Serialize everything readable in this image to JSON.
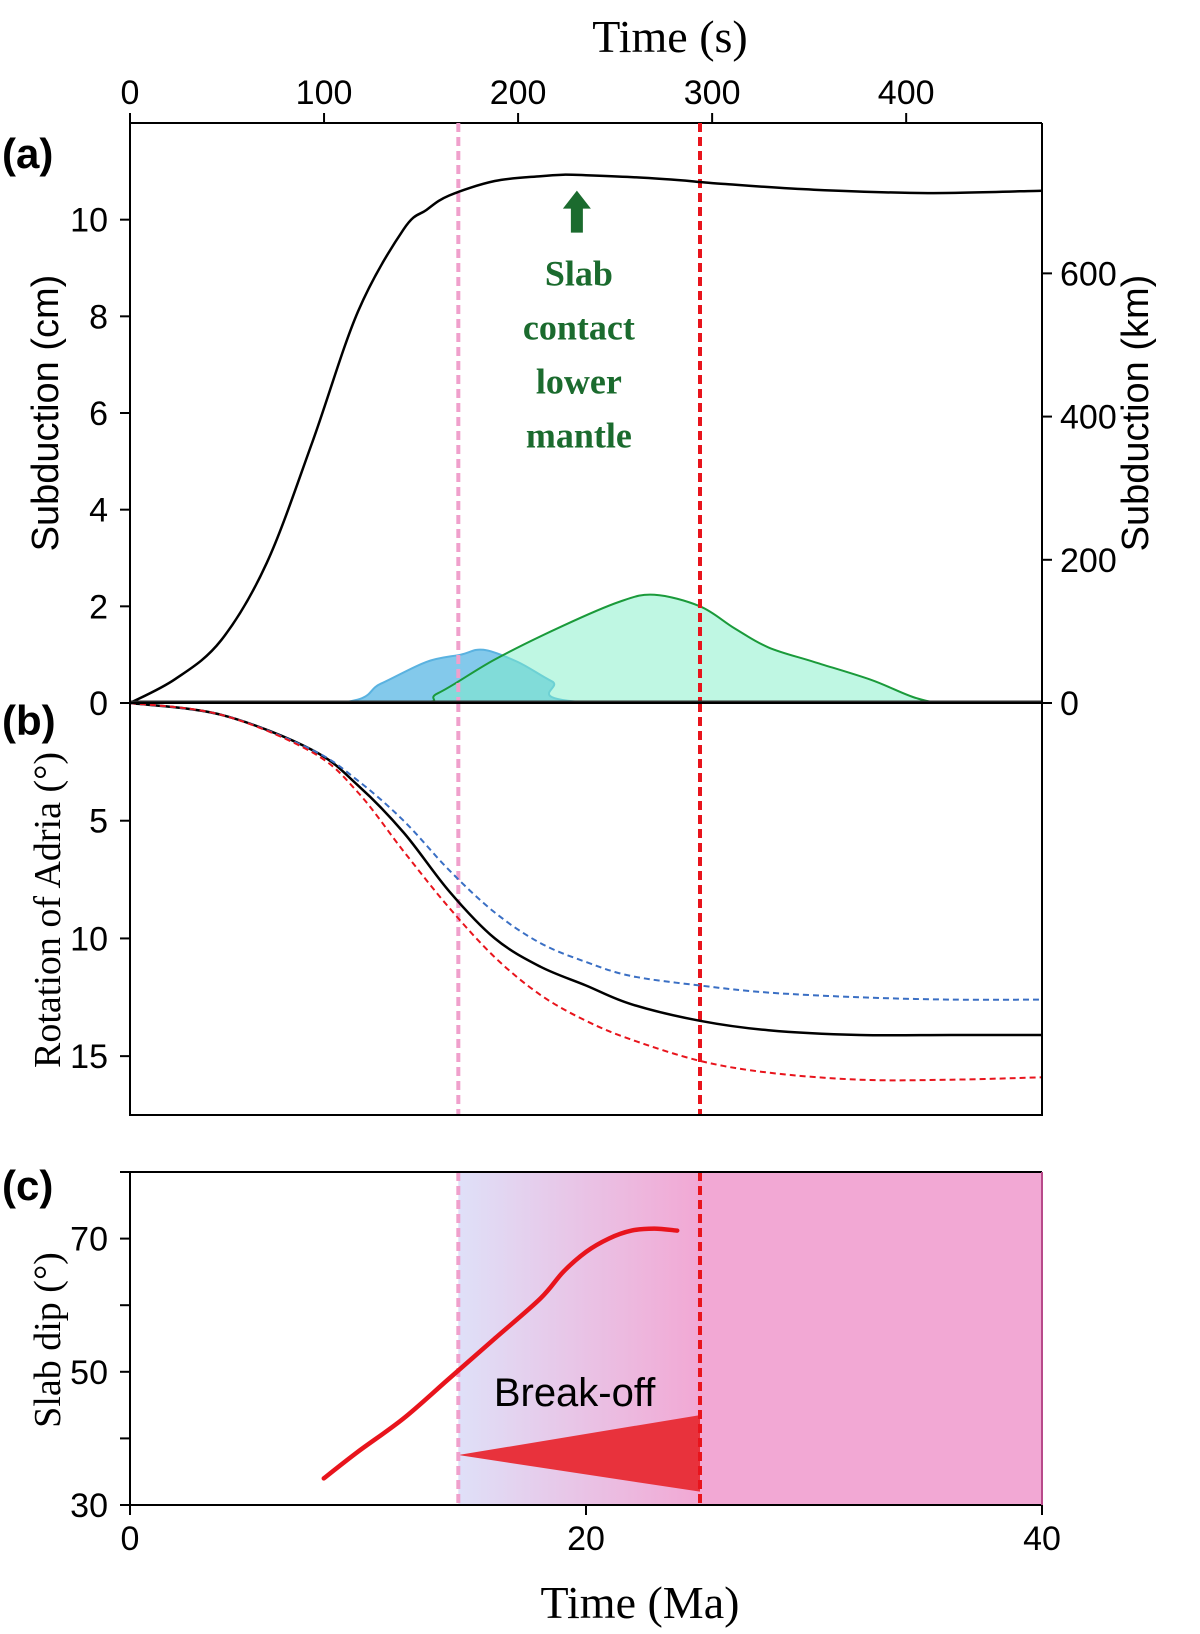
{
  "chart_data": [
    {
      "panel": "a",
      "panel_label": "(a)",
      "type": "line",
      "title": "Time (s)",
      "top_axis": {
        "label": "Time (s)",
        "range": [
          0,
          470
        ],
        "ticks": [
          0,
          100,
          200,
          300,
          400
        ]
      },
      "xlabel": "",
      "x_range_Ma": [
        0,
        40
      ],
      "ylabel": "Subduction (cm)",
      "ylim": [
        0,
        12
      ],
      "yticks": [
        0,
        2,
        4,
        6,
        8,
        10
      ],
      "ylabel_right": "Subduction (km)",
      "right_axis": {
        "range": [
          0,
          810
        ],
        "ticks": [
          0,
          200,
          400,
          600
        ]
      },
      "series": [
        {
          "name": "subduction",
          "style": "solid",
          "color": "#000000",
          "x": [
            0,
            2,
            4,
            6,
            8,
            10,
            12,
            13,
            14,
            16,
            18,
            19,
            20,
            22,
            24,
            25,
            26,
            30,
            35,
            40
          ],
          "y": [
            0,
            0.5,
            1.3,
            2.9,
            5.4,
            8.1,
            9.8,
            10.2,
            10.5,
            10.8,
            10.9,
            10.93,
            10.92,
            10.88,
            10.82,
            10.78,
            10.74,
            10.62,
            10.55,
            10.6
          ]
        },
        {
          "name": "blue area",
          "style": "area",
          "color": "#5ab2e0",
          "x": [
            0,
            9,
            11,
            13,
            14.5,
            15.5,
            17,
            18.5,
            20.5,
            40
          ],
          "y": [
            0,
            0,
            0.4,
            0.85,
            1.0,
            1.1,
            0.85,
            0.45,
            0,
            0
          ]
        },
        {
          "name": "green area",
          "style": "area",
          "color": "#1a9a3a",
          "x": [
            0,
            12,
            13.5,
            16,
            19,
            21.5,
            23,
            25,
            26.5,
            28,
            30,
            32.5,
            34.5,
            36,
            40
          ],
          "y": [
            0,
            0,
            0.2,
            0.9,
            1.6,
            2.1,
            2.24,
            2.0,
            1.55,
            1.15,
            0.85,
            0.48,
            0.1,
            0,
            0
          ]
        }
      ],
      "vlines_Ma": [
        {
          "x": 14.4,
          "color": "#f0a0cc",
          "style": "dashed"
        },
        {
          "x": 25.0,
          "color": "#e8141c",
          "style": "dashed"
        }
      ],
      "annotations": [
        {
          "text_lines": [
            "Slab",
            "contact",
            "lower",
            "mantle"
          ],
          "x": 19.6,
          "y": 10.6,
          "color": "#1b6b2e",
          "arrow": true
        }
      ]
    },
    {
      "panel": "b",
      "panel_label": "(b)",
      "type": "line",
      "title": "",
      "xlabel": "",
      "ylabel": "Rotation of Adria (°)",
      "ylim": [
        0,
        17.5
      ],
      "yticks": [
        5,
        10,
        15
      ],
      "y_inverted": true,
      "series": [
        {
          "name": "rotation",
          "style": "solid",
          "color": "#000000",
          "x": [
            0,
            4,
            8,
            10,
            12,
            14,
            16,
            18,
            20,
            22,
            25,
            28,
            32,
            36,
            40
          ],
          "y": [
            0,
            0.5,
            2.0,
            3.5,
            5.5,
            8.0,
            10.0,
            11.2,
            12.0,
            12.8,
            13.5,
            13.9,
            14.1,
            14.1,
            14.1
          ]
        },
        {
          "name": "rotation upper",
          "style": "dashed",
          "color": "#3a6fc4",
          "x": [
            0,
            4,
            8,
            10,
            12,
            14,
            16,
            18,
            20,
            22,
            25,
            28,
            32,
            36,
            40
          ],
          "y": [
            0,
            0.5,
            2.0,
            3.3,
            5.0,
            7.1,
            8.9,
            10.2,
            11.0,
            11.6,
            12.0,
            12.3,
            12.5,
            12.6,
            12.6
          ]
        },
        {
          "name": "rotation lower",
          "style": "dashed",
          "color": "#e8141c",
          "x": [
            0,
            4,
            8,
            10,
            12,
            14,
            16,
            18,
            20,
            22,
            25,
            28,
            32,
            36,
            40
          ],
          "y": [
            0,
            0.5,
            2.1,
            3.8,
            6.3,
            8.7,
            10.8,
            12.4,
            13.5,
            14.3,
            15.2,
            15.7,
            16.0,
            16.0,
            15.9
          ]
        }
      ],
      "vlines_Ma": [
        {
          "x": 14.4,
          "color": "#f0a0cc",
          "style": "dashed"
        },
        {
          "x": 25.0,
          "color": "#e8141c",
          "style": "dashed"
        }
      ]
    },
    {
      "panel": "c",
      "panel_label": "(c)",
      "type": "line",
      "title": "",
      "xlabel": "Time (Ma)",
      "xlim": [
        0,
        40
      ],
      "xticks": [
        0,
        20,
        40
      ],
      "ylabel": "Slab dip (°)",
      "ylim": [
        30,
        80
      ],
      "yticks": [
        30,
        50,
        70
      ],
      "series": [
        {
          "name": "slab dip",
          "style": "solid",
          "color": "#e8141c",
          "x": [
            8.5,
            10,
            12,
            14,
            16,
            18,
            19,
            20,
            21,
            22,
            23,
            24
          ],
          "y": [
            34,
            38,
            43,
            49,
            55,
            61,
            65,
            68,
            70,
            71.2,
            71.5,
            71.2
          ]
        }
      ],
      "shaded_regions": [
        {
          "x0": 14.4,
          "x1": 25.0,
          "color_from": "#dfe0f8",
          "color_to": "#f2a8d4"
        },
        {
          "x0": 25.0,
          "x1": 40.0,
          "color": "#f2a8d4"
        }
      ],
      "wedge": {
        "x0": 14.4,
        "x1": 25.0,
        "y_tip": 37.5,
        "y_top": 43.5,
        "y_bottom": 32.0,
        "color": "#e8323c"
      },
      "annotations": [
        {
          "text": "Break-off",
          "x": 19.5,
          "y": 47
        }
      ],
      "vlines_Ma": [
        {
          "x": 14.4,
          "color": "#f0a0cc",
          "style": "dashed"
        },
        {
          "x": 25.0,
          "color": "#e8141c",
          "style": "dashed"
        }
      ]
    }
  ]
}
